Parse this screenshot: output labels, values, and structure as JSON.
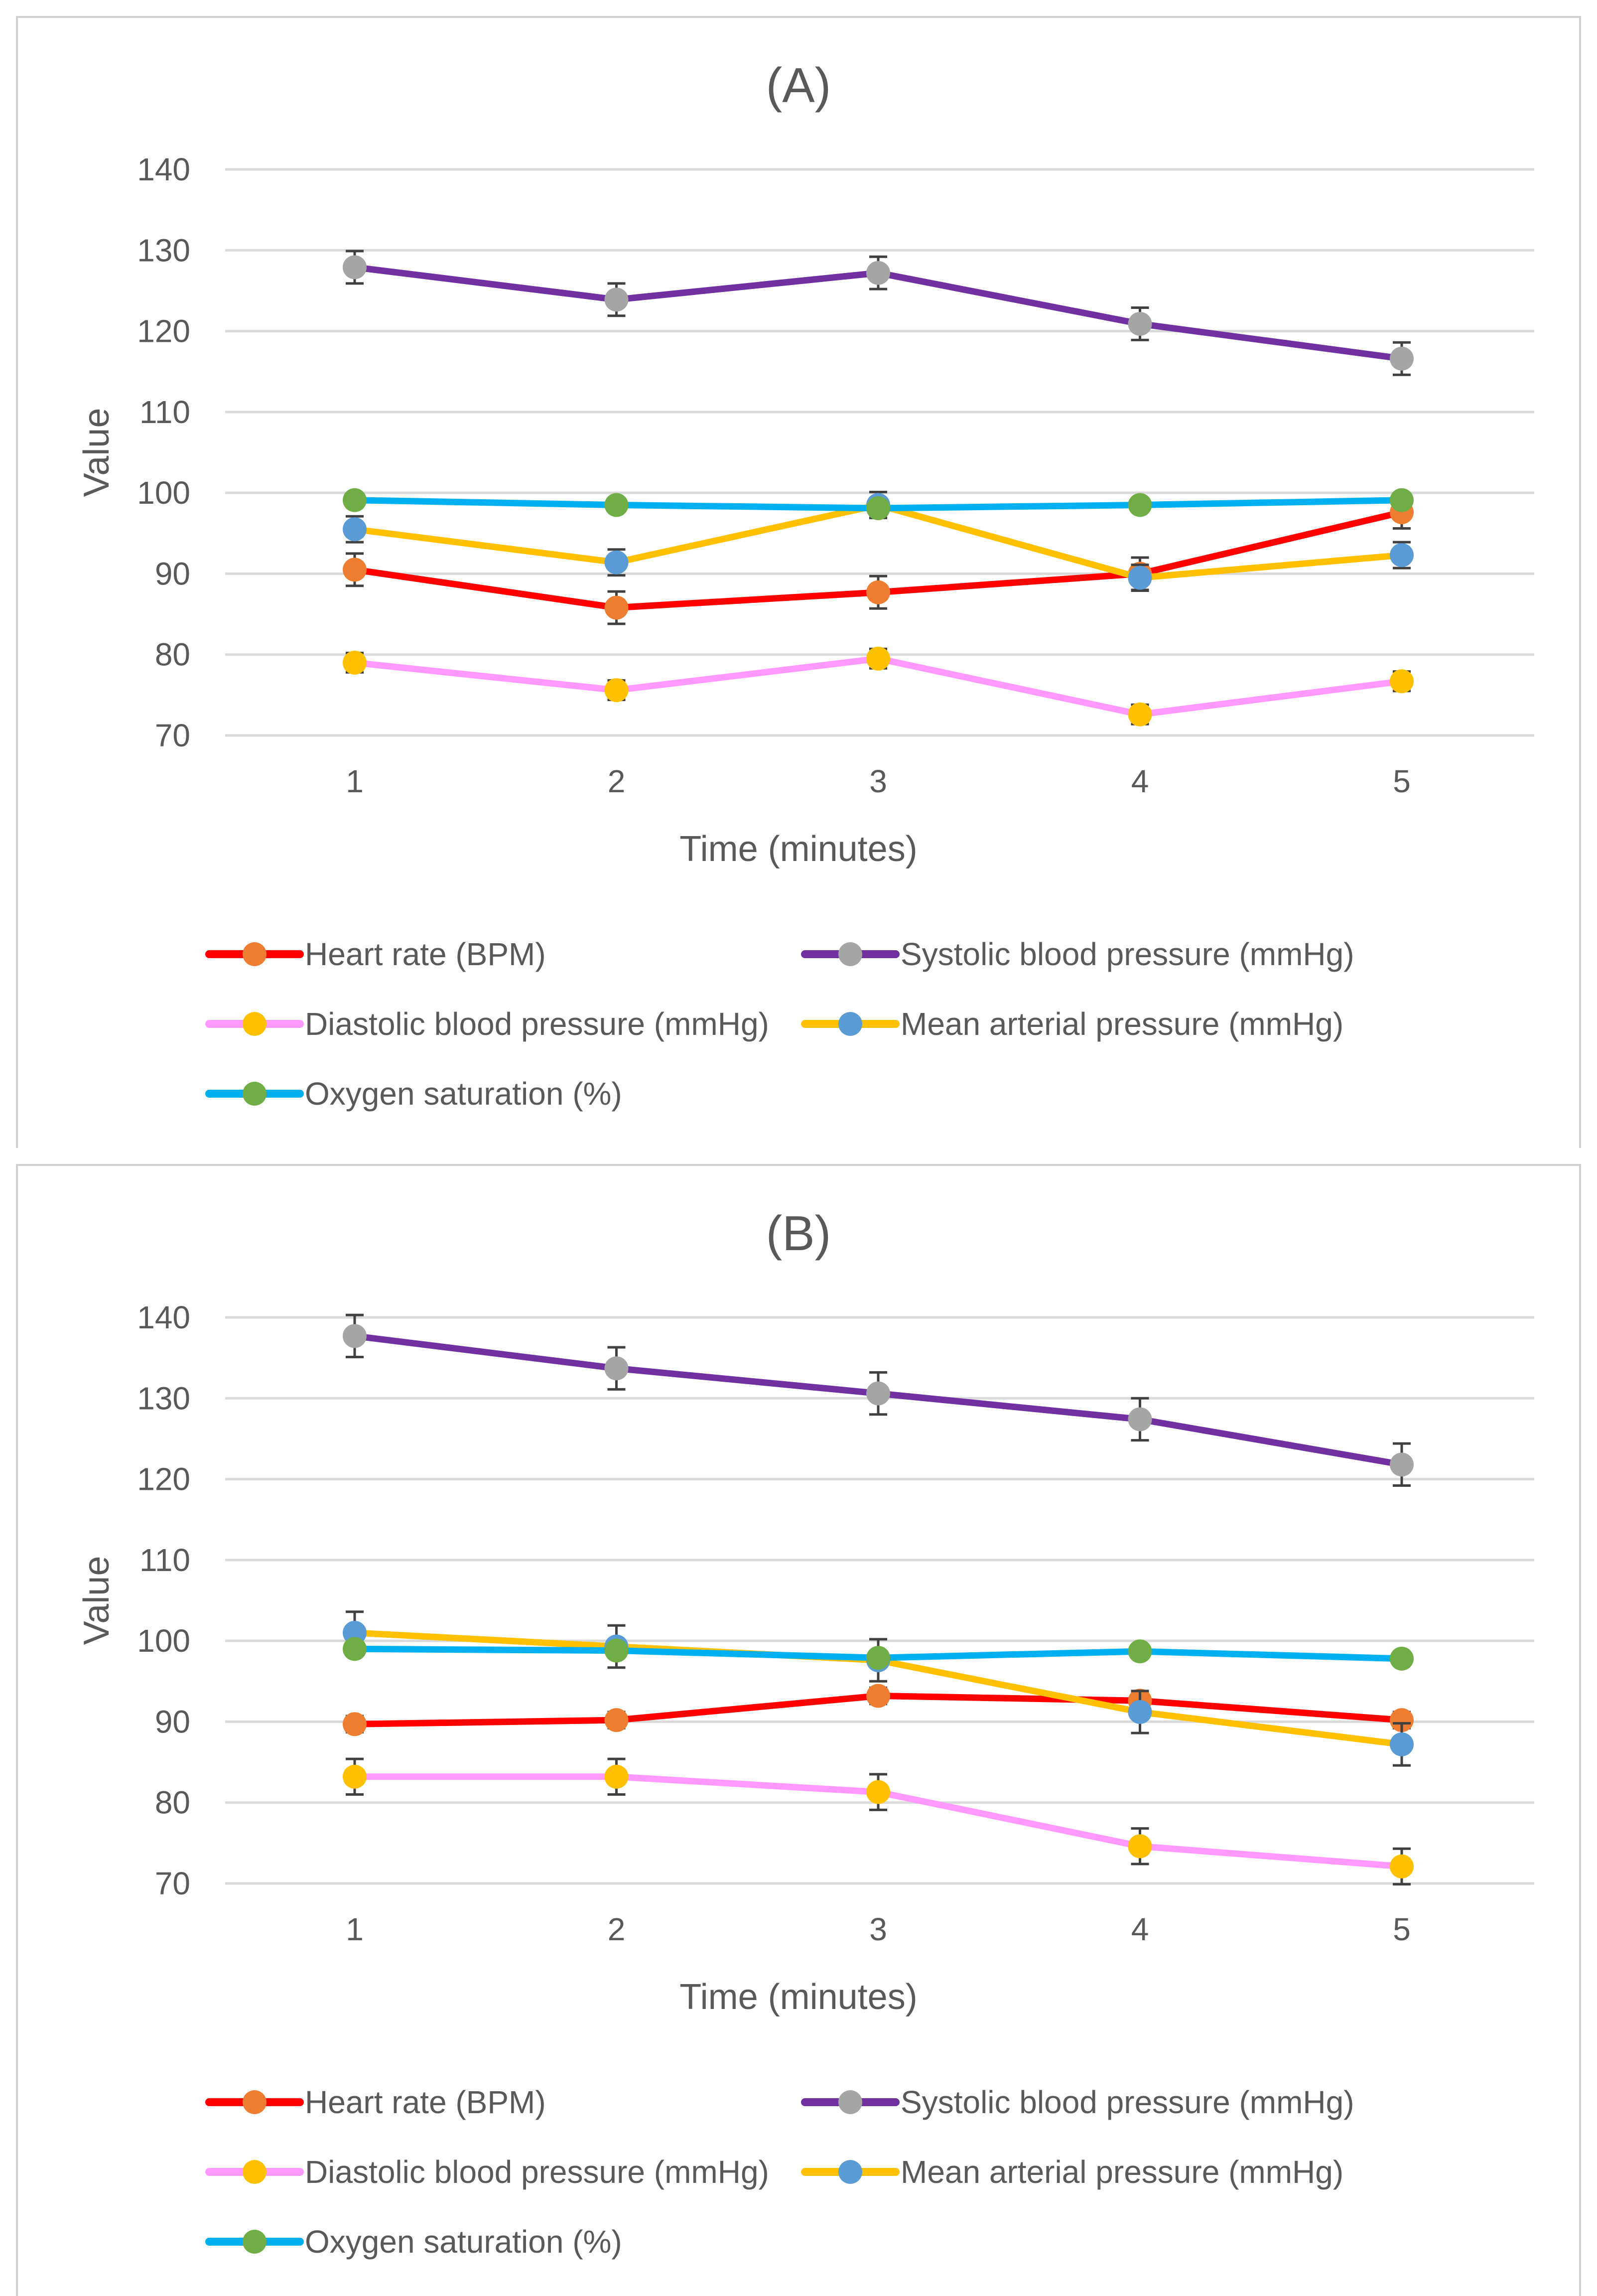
{
  "chart_data": [
    {
      "type": "line",
      "title": "(A)",
      "xlabel": "Time (minutes)",
      "ylabel": "Value",
      "x": [
        1,
        2,
        3,
        4,
        5
      ],
      "ylim": [
        70,
        140
      ],
      "yticks": [
        70,
        80,
        90,
        100,
        110,
        120,
        130,
        140
      ],
      "grid": true,
      "legend_position": "bottom",
      "series": [
        {
          "name": "Heart rate (BPM)",
          "values": [
            90.5,
            85.8,
            87.7,
            90.0,
            97.6
          ],
          "errors": [
            2.0,
            2.0,
            2.0,
            2.0,
            2.0
          ],
          "line_color": "#ff0000",
          "marker_color": "#ed7d31"
        },
        {
          "name": "Systolic blood pressure (mmHg)",
          "values": [
            127.9,
            123.9,
            127.2,
            120.9,
            116.6
          ],
          "errors": [
            2.0,
            2.0,
            2.0,
            2.0,
            2.0
          ],
          "line_color": "#7030a0",
          "marker_color": "#a5a5a5"
        },
        {
          "name": "Diastolic blood pressure (mmHg)",
          "values": [
            79.0,
            75.6,
            79.5,
            72.6,
            76.7
          ],
          "errors": [
            1.2,
            1.2,
            1.2,
            1.2,
            1.2
          ],
          "line_color": "#ff99ff",
          "marker_color": "#ffc000"
        },
        {
          "name": "Mean arterial pressure (mmHg)",
          "values": [
            95.5,
            91.4,
            98.5,
            89.5,
            92.3
          ],
          "errors": [
            1.6,
            1.6,
            1.6,
            1.6,
            1.6
          ],
          "line_color": "#ffc000",
          "marker_color": "#5b9bd5"
        },
        {
          "name": "Oxygen saturation (%)",
          "values": [
            99.1,
            98.5,
            98.1,
            98.5,
            99.1
          ],
          "errors": [
            0.4,
            0.4,
            0.4,
            0.4,
            0.4
          ],
          "line_color": "#00b0f0",
          "marker_color": "#70ad47"
        }
      ]
    },
    {
      "type": "line",
      "title": "(B)",
      "xlabel": "Time (minutes)",
      "ylabel": "Value",
      "x": [
        1,
        2,
        3,
        4,
        5
      ],
      "ylim": [
        70,
        140
      ],
      "yticks": [
        70,
        80,
        90,
        100,
        110,
        120,
        130,
        140
      ],
      "grid": true,
      "legend_position": "bottom",
      "series": [
        {
          "name": "Heart rate (BPM)",
          "values": [
            89.7,
            90.2,
            93.2,
            92.6,
            90.2
          ],
          "errors": [
            1.0,
            1.0,
            1.0,
            1.0,
            1.0
          ],
          "line_color": "#ff0000",
          "marker_color": "#ed7d31"
        },
        {
          "name": "Systolic blood pressure (mmHg)",
          "values": [
            137.7,
            133.7,
            130.6,
            127.4,
            121.8
          ],
          "errors": [
            2.6,
            2.6,
            2.6,
            2.6,
            2.6
          ],
          "line_color": "#7030a0",
          "marker_color": "#a5a5a5"
        },
        {
          "name": "Diastolic blood pressure (mmHg)",
          "values": [
            83.2,
            83.2,
            81.3,
            74.6,
            72.1
          ],
          "errors": [
            2.2,
            2.2,
            2.2,
            2.2,
            2.2
          ],
          "line_color": "#ff99ff",
          "marker_color": "#ffc000"
        },
        {
          "name": "Mean arterial pressure (mmHg)",
          "values": [
            101.0,
            99.3,
            97.6,
            91.2,
            87.2
          ],
          "errors": [
            2.6,
            2.6,
            2.6,
            2.6,
            2.6
          ],
          "line_color": "#ffc000",
          "marker_color": "#5b9bd5"
        },
        {
          "name": "Oxygen saturation (%)",
          "values": [
            99.0,
            98.8,
            97.9,
            98.7,
            97.8
          ],
          "errors": [
            0.4,
            0.4,
            0.4,
            0.4,
            0.4
          ],
          "line_color": "#00b0f0",
          "marker_color": "#70ad47"
        }
      ]
    }
  ]
}
